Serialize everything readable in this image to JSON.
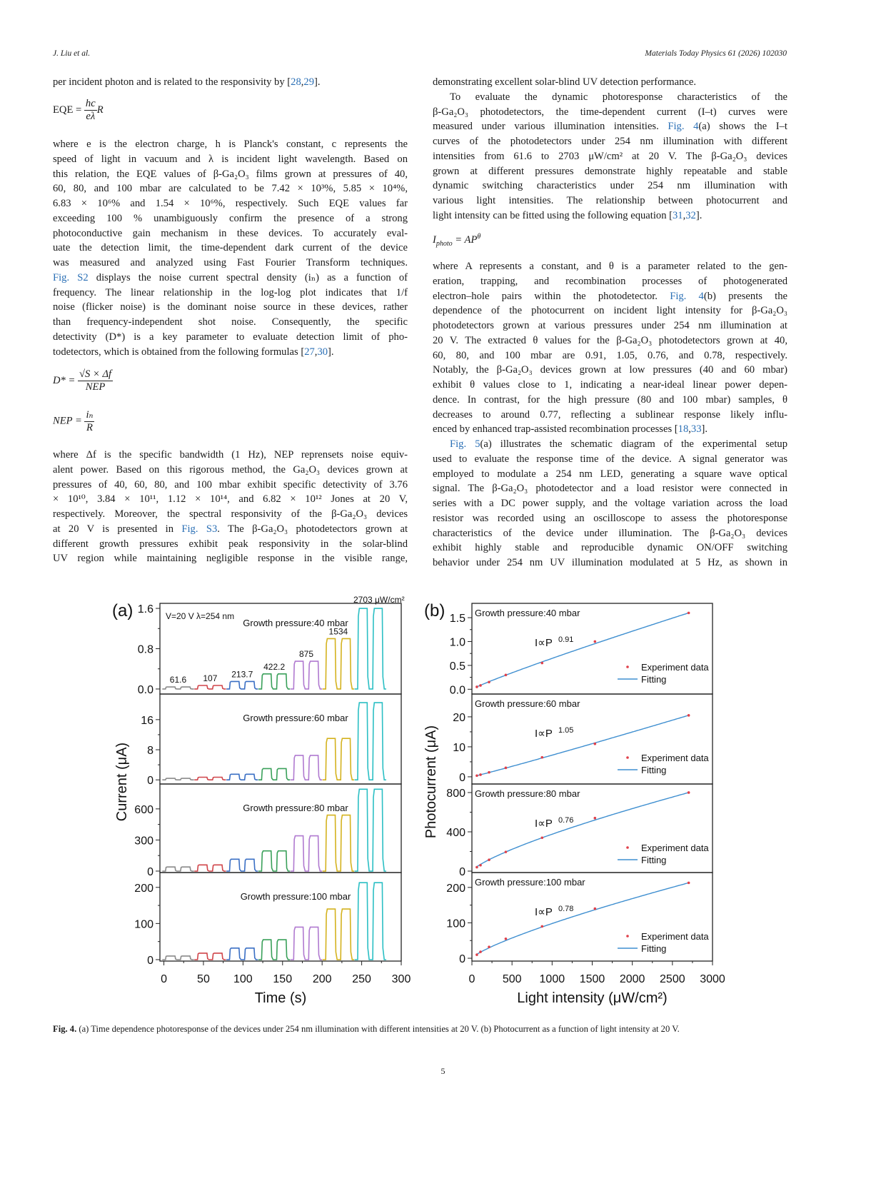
{
  "header": {
    "authors": "J. Liu et al.",
    "journal": "Materials Today Physics 61 (2026) 102030"
  },
  "left_column": {
    "lines_a": [
      [
        "per incident photon and is related to the responsivity by [",
        {
          "l": "28"
        },
        ",",
        {
          "l": "29"
        },
        "]."
      ]
    ],
    "eq_eqe": {
      "lhs": "EQE =",
      "num": "hc",
      "den": "eλ",
      "rhs": "R"
    },
    "lines_b": [
      "where e is the electron charge, h is Planck's constant, c represents the",
      "speed of light in vacuum and λ is incident light wavelength. Based on",
      "this relation, the EQE values of β-Ga₂O₃ films grown at pressures of 40,",
      "60, 80, and 100 mbar are calculated to be 7.42 × 10³%, 5.85 × 10⁴%,",
      "6.83 × 10⁶% and 1.54 × 10⁶%, respectively. Such EQE values far",
      "exceeding 100 % unambiguously confirm the presence of a strong",
      "photoconductive gain mechanism in these devices. To accurately eval-",
      "uate the detection limit, the time-dependent dark current of the device",
      "was measured and analyzed using Fast Fourier Transform techniques.",
      [
        {
          "l": "Fig. S2"
        },
        " displays the noise current spectral density (iₙ) as a function of"
      ],
      "frequency. The linear relationship in the log-log plot indicates that 1/f",
      "noise (flicker noise) is the dominant noise source in these devices, rather",
      "than frequency-independent shot noise. Consequently, the specific",
      "detectivity (D*) is a key parameter to evaluate detection limit of pho-",
      [
        "todetectors, which is obtained from the following formulas [",
        {
          "l": "27"
        },
        ",",
        {
          "l": "30"
        },
        "]."
      ]
    ],
    "eq_d": {
      "lhs": "D* =",
      "num": "√S × Δf",
      "den": "NEP"
    },
    "eq_nep": {
      "lhs": "NEP =",
      "num": "iₙ",
      "den": "R"
    },
    "lines_c": [
      "where Δf is the specific bandwidth (1 Hz), NEP reprensets noise equiv-",
      "alent power. Based on this rigorous method, the Ga₂O₃ devices grown at",
      "pressures of 40, 60, 80, and 100 mbar exhibit specific detectivity of 3.76",
      "× 10¹⁰, 3.84 × 10¹¹, 1.12 × 10¹⁴, and 6.82 × 10¹² Jones at 20 V,",
      "respectively. Moreover, the spectral responsivity of the β-Ga₂O₃ devices",
      [
        "at 20 V is presented in ",
        {
          "l": "Fig. S3"
        },
        ". The β-Ga₂O₃ photodetectors grown at"
      ],
      "different growth pressures exhibit peak responsivity in the solar-blind",
      "UV region while maintaining negligible response in the visible range,"
    ]
  },
  "right_column": {
    "lines_a": [
      "demonstrating excellent solar-blind UV detection performance.",
      "To evaluate the dynamic photoresponse characteristics of the",
      "β-Ga₂O₃ photodetectors, the time-dependent current (I–t) curves were",
      [
        "measured under various illumination intensities. ",
        {
          "l": "Fig. 4"
        },
        "(a) shows the I–t"
      ],
      "curves of the photodetectors under 254 nm illumination with different",
      "intensities from 61.6 to 2703 μW/cm² at 20 V. The β-Ga₂O₃ devices",
      "grown at different pressures demonstrate highly repeatable and stable",
      "dynamic switching characteristics under 254 nm illumination with",
      "various light intensities. The relationship between photocurrent and",
      [
        "light intensity can be fitted using the following equation [",
        {
          "l": "31"
        },
        ",",
        {
          "l": "32"
        },
        "]."
      ]
    ],
    "eq_iphoto": {
      "lhs": "I",
      "sub": "photo",
      "rhs": " = AP",
      "sup": "θ"
    },
    "lines_b": [
      "where A represents a constant, and θ is a parameter related to the gen-",
      "eration, trapping, and recombination processes of photogenerated",
      [
        "electron–hole pairs within the photodetector. ",
        {
          "l": "Fig. 4"
        },
        "(b) presents the"
      ],
      "dependence of the photocurrent on incident light intensity for β-Ga₂O₃",
      "photodetectors grown at various pressures under 254 nm illumination at",
      "20 V. The extracted θ values for the β-Ga₂O₃ photodetectors grown at 40,",
      "60, 80, and 100 mbar are 0.91, 1.05, 0.76, and 0.78, respectively.",
      "Notably, the β-Ga₂O₃ devices grown at low pressures (40 and 60 mbar)",
      "exhibit θ values close to 1, indicating a near-ideal linear power depen-",
      "dence. In contrast, for the high pressure (80 and 100 mbar) samples, θ",
      "decreases to around 0.77, reflecting a sublinear response likely influ-",
      [
        "enced by enhanced trap-assisted recombination processes [",
        {
          "l": "18"
        },
        ",",
        {
          "l": "33"
        },
        "]."
      ],
      [
        {
          "l": "Fig. 5"
        },
        "(a) illustrates the schematic diagram of the experimental setup"
      ],
      "used to evaluate the response time of the device. A signal generator was",
      "employed to modulate a 254 nm LED, generating a square wave optical",
      "signal. The β-Ga₂O₃ photodetector and a load resistor were connected in",
      "series with a DC power supply, and the voltage variation across the load",
      "resistor was recorded using an oscilloscope to assess the photoresponse",
      "characteristics of the device under illumination. The β-Ga₂O₃ devices",
      "exhibit highly stable and reproducible dynamic ON/OFF switching",
      "behavior under 254 nm UV illumination modulated at 5 Hz, as shown in"
    ]
  },
  "figure": {
    "caption_label": "Fig. 4.",
    "caption": "(a) Time dependence photoresponse of the devices under 254 nm illumination with different intensities at 20 V. (b) Photocurrent as a function of light intensity at 20 V."
  },
  "chart_data": [
    {
      "panel": "(a)",
      "type": "line",
      "xlabel": "Time (s)",
      "ylabel": "Current (μA)",
      "xlim": [
        -5,
        300
      ],
      "xticks": [
        0,
        50,
        100,
        150,
        200,
        250,
        300
      ],
      "annotation": "V=20 V  λ=254 nm",
      "intensity_labels": [
        "61.6",
        "107",
        "213.7",
        "422.2",
        "875",
        "1534",
        "2703 μW/cm²"
      ],
      "series_colors": [
        "#8a8a8a",
        "#d0454a",
        "#3a6fc4",
        "#3aa05a",
        "#b07ad0",
        "#d4b21e",
        "#2bbfc4"
      ],
      "subplots": [
        {
          "label": "Growth pressure:40 mbar",
          "ylim": [
            -0.1,
            1.7
          ],
          "yticks": [
            0.0,
            0.8,
            1.6
          ],
          "ytick_labels": [
            "0.0",
            "0.8",
            "1.6"
          ],
          "peaks": [
            0.04,
            0.07,
            0.15,
            0.3,
            0.55,
            1.0,
            1.6
          ]
        },
        {
          "label": "Growth pressure:60 mbar",
          "ylim": [
            -1.1,
            22.8
          ],
          "yticks": [
            0,
            8,
            16
          ],
          "ytick_labels": [
            "0",
            "8",
            "16"
          ],
          "peaks": [
            0.4,
            0.7,
            1.5,
            3.0,
            6.5,
            11.0,
            20.5
          ]
        },
        {
          "label": "Growth pressure:80 mbar",
          "ylim": [
            -14,
            840
          ],
          "yticks": [
            0,
            300,
            600
          ],
          "ytick_labels": [
            "0",
            "300",
            "600"
          ],
          "peaks": [
            40,
            60,
            115,
            195,
            340,
            540,
            790
          ]
        },
        {
          "label": "Growth pressure:100 mbar",
          "ylim": [
            -4,
            241
          ],
          "yticks": [
            0,
            100,
            200
          ],
          "ytick_labels": [
            "0",
            "100",
            "200"
          ],
          "peaks": [
            10,
            18,
            32,
            55,
            90,
            140,
            213
          ]
        }
      ]
    },
    {
      "panel": "(b)",
      "type": "scatter",
      "xlabel": "Light intensity (μW/cm²)",
      "ylabel": "Photocurrent (μA)",
      "xlim": [
        0,
        3000
      ],
      "xticks": [
        0,
        500,
        1000,
        1500,
        2000,
        2500,
        3000
      ],
      "x": [
        61.6,
        107,
        213.7,
        422.2,
        875,
        1534,
        2703
      ],
      "legend": {
        "points": "Experiment data",
        "line": "Fitting",
        "placement": "right"
      },
      "point_color": "#e0404a",
      "fit_color": "#3f8fd0",
      "subplots": [
        {
          "label": "Growth pressure:40 mbar",
          "fit_label": "I∝P",
          "exponent": "0.91",
          "theta": 0.91,
          "ylim": [
            -0.1,
            1.8
          ],
          "yticks": [
            0,
            0.5,
            1.0,
            1.5
          ],
          "ytick_labels": [
            "0.0",
            "0.5",
            "1.0",
            "1.5"
          ],
          "y": [
            0.05,
            0.08,
            0.15,
            0.3,
            0.55,
            1.0,
            1.6
          ]
        },
        {
          "label": "Growth pressure:60 mbar",
          "fit_label": "I∝P",
          "exponent": "1.05",
          "theta": 1.05,
          "ylim": [
            -2.4,
            27.6
          ],
          "yticks": [
            0,
            10,
            20
          ],
          "ytick_labels": [
            "0",
            "10",
            "20"
          ],
          "y": [
            0.4,
            0.7,
            1.5,
            3.0,
            6.5,
            11.0,
            20.5
          ]
        },
        {
          "label": "Growth pressure:80 mbar",
          "fit_label": "I∝P",
          "exponent": "0.76",
          "theta": 0.76,
          "ylim": [
            -14.5,
            887
          ],
          "yticks": [
            0,
            400,
            800
          ],
          "ytick_labels": [
            "0",
            "400",
            "800"
          ],
          "y": [
            40,
            60,
            115,
            195,
            340,
            540,
            800
          ]
        },
        {
          "label": "Growth pressure:100 mbar",
          "fit_label": "I∝P",
          "exponent": "0.78",
          "theta": 0.78,
          "ylim": [
            -8,
            242
          ],
          "yticks": [
            0,
            100,
            200
          ],
          "ytick_labels": [
            "0",
            "100",
            "200"
          ],
          "y": [
            10,
            18,
            32,
            55,
            90,
            140,
            213
          ]
        }
      ]
    }
  ],
  "page_number": "5"
}
